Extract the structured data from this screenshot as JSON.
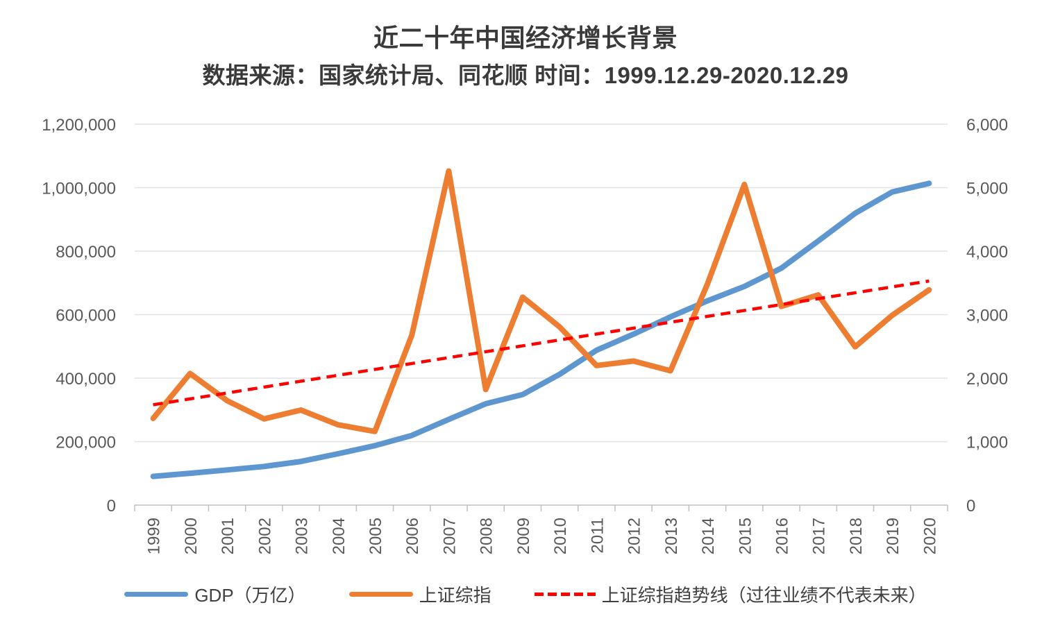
{
  "header": {
    "title": "近二十年中国经济增长背景",
    "subtitle": "数据来源：国家统计局、同花顺 时间：1999.12.29-2020.12.29"
  },
  "chart_data": {
    "type": "line",
    "title": "近二十年中国经济增长背景",
    "subtitle": "数据来源：国家统计局、同花顺 时间：1999.12.29-2020.12.29",
    "grid": true,
    "legend_position": "bottom",
    "categories": [
      "1999",
      "2000",
      "2001",
      "2002",
      "2003",
      "2004",
      "2005",
      "2006",
      "2007",
      "2008",
      "2009",
      "2010",
      "2011",
      "2012",
      "2013",
      "2014",
      "2015",
      "2016",
      "2017",
      "2018",
      "2019",
      "2020"
    ],
    "left_axis": {
      "min": 0,
      "max": 1200000,
      "tick_labels": [
        "0",
        "200,000",
        "400,000",
        "600,000",
        "800,000",
        "1,000,000",
        "1,200,000"
      ]
    },
    "right_axis": {
      "min": 0,
      "max": 6000,
      "tick_labels": [
        "0",
        "1,000",
        "2,000",
        "3,000",
        "4,000",
        "5,000",
        "6,000"
      ]
    },
    "series": [
      {
        "id": "gdp",
        "name": "GDP（万亿）",
        "axis": "left",
        "color": "#5E97D0",
        "style": "solid",
        "values": [
          90564,
          100280,
          110863,
          121717,
          137422,
          161840,
          187319,
          219439,
          270092,
          319245,
          348518,
          412119,
          487940,
          538580,
          592963,
          643563,
          688858,
          746395,
          832036,
          919281,
          986515,
          1013567
        ]
      },
      {
        "id": "sse",
        "name": "上证综指",
        "axis": "right",
        "color": "#ED7D31",
        "style": "solid",
        "values": [
          1366,
          2073,
          1646,
          1358,
          1497,
          1266,
          1161,
          2675,
          5262,
          1821,
          3277,
          2808,
          2199,
          2269,
          2116,
          3480,
          5050,
          3130,
          3310,
          2494,
          2990,
          3390
        ]
      },
      {
        "id": "sse-trend",
        "name": "上证综指趋势线（过往业绩不代表未来）",
        "axis": "right",
        "color": "#FF0000",
        "style": "dashed",
        "trend": true,
        "endpoints": [
          1580,
          3530
        ]
      }
    ],
    "colors": {
      "gridline": "#E2E2E2",
      "axis_line": "#BFBFBF",
      "tick_text": "#595959"
    }
  }
}
